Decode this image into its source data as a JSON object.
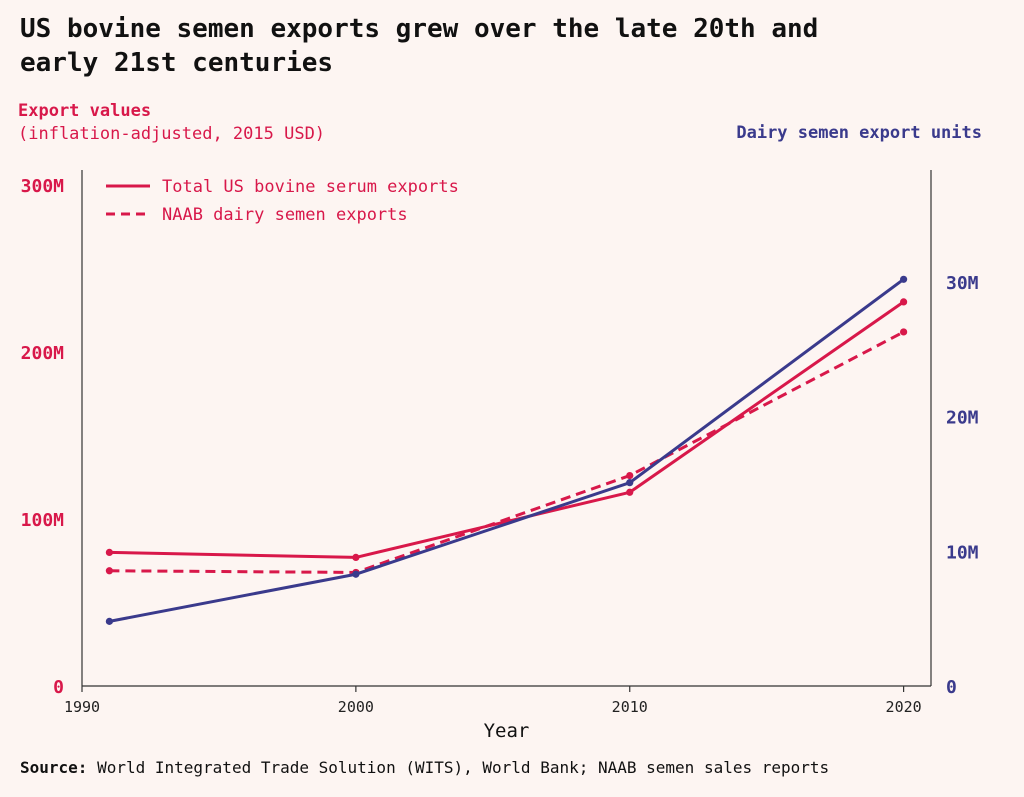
{
  "title_lines": [
    "US bovine semen exports grew over the late 20th and",
    "early 21st centuries"
  ],
  "left_axis": {
    "title": "Export values",
    "subtitle": "(inflation-adjusted, 2015 USD)",
    "color": "#d8184a"
  },
  "right_axis": {
    "title": "Dairy semen export units",
    "color": "#3a3a8c"
  },
  "source": {
    "label": "Source:",
    "text": "World Integrated Trade Solution (WITS), World Bank; NAAB semen sales reports"
  },
  "chart_data": {
    "type": "line",
    "title": "US bovine semen exports grew over the late 20th and early 21st centuries",
    "xlabel": "Year",
    "ylabel": "Export values (inflation-adjusted, 2015 USD)",
    "y2label": "Dairy semen export units",
    "x": [
      1991,
      2000,
      2010,
      2020
    ],
    "xlim": [
      1990,
      2021
    ],
    "xticks": [
      1990,
      2000,
      2010,
      2020
    ],
    "xtick_labels": [
      "1990",
      "2000",
      "2010",
      "2020"
    ],
    "ylim": [
      0,
      300000000
    ],
    "yticks": [
      0,
      100000000,
      200000000,
      300000000
    ],
    "ytick_labels": [
      "0",
      "100M",
      "200M",
      "300M"
    ],
    "y2lim": [
      0,
      38000000
    ],
    "y2ticks": [
      0,
      10000000,
      20000000,
      30000000
    ],
    "y2tick_labels": [
      "0",
      "10M",
      "20M",
      "30M"
    ],
    "series": [
      {
        "name": "Total US bovine serum exports",
        "axis": "left",
        "style": "solid",
        "color": "#d8184a",
        "values": [
          80000000,
          77000000,
          116000000,
          230000000
        ]
      },
      {
        "name": "NAAB dairy semen exports",
        "axis": "left",
        "style": "dashed",
        "color": "#d8184a",
        "values": [
          69000000,
          68000000,
          126000000,
          212000000
        ]
      },
      {
        "name": "Dairy semen export units",
        "axis": "right",
        "style": "solid",
        "color": "#3a3a8c",
        "values": [
          4800000,
          8300000,
          15100000,
          30200000
        ]
      }
    ],
    "legend": {
      "position": "top-left",
      "entries": [
        "Total US bovine serum exports",
        "NAAB dairy semen exports"
      ]
    },
    "grid": false
  }
}
